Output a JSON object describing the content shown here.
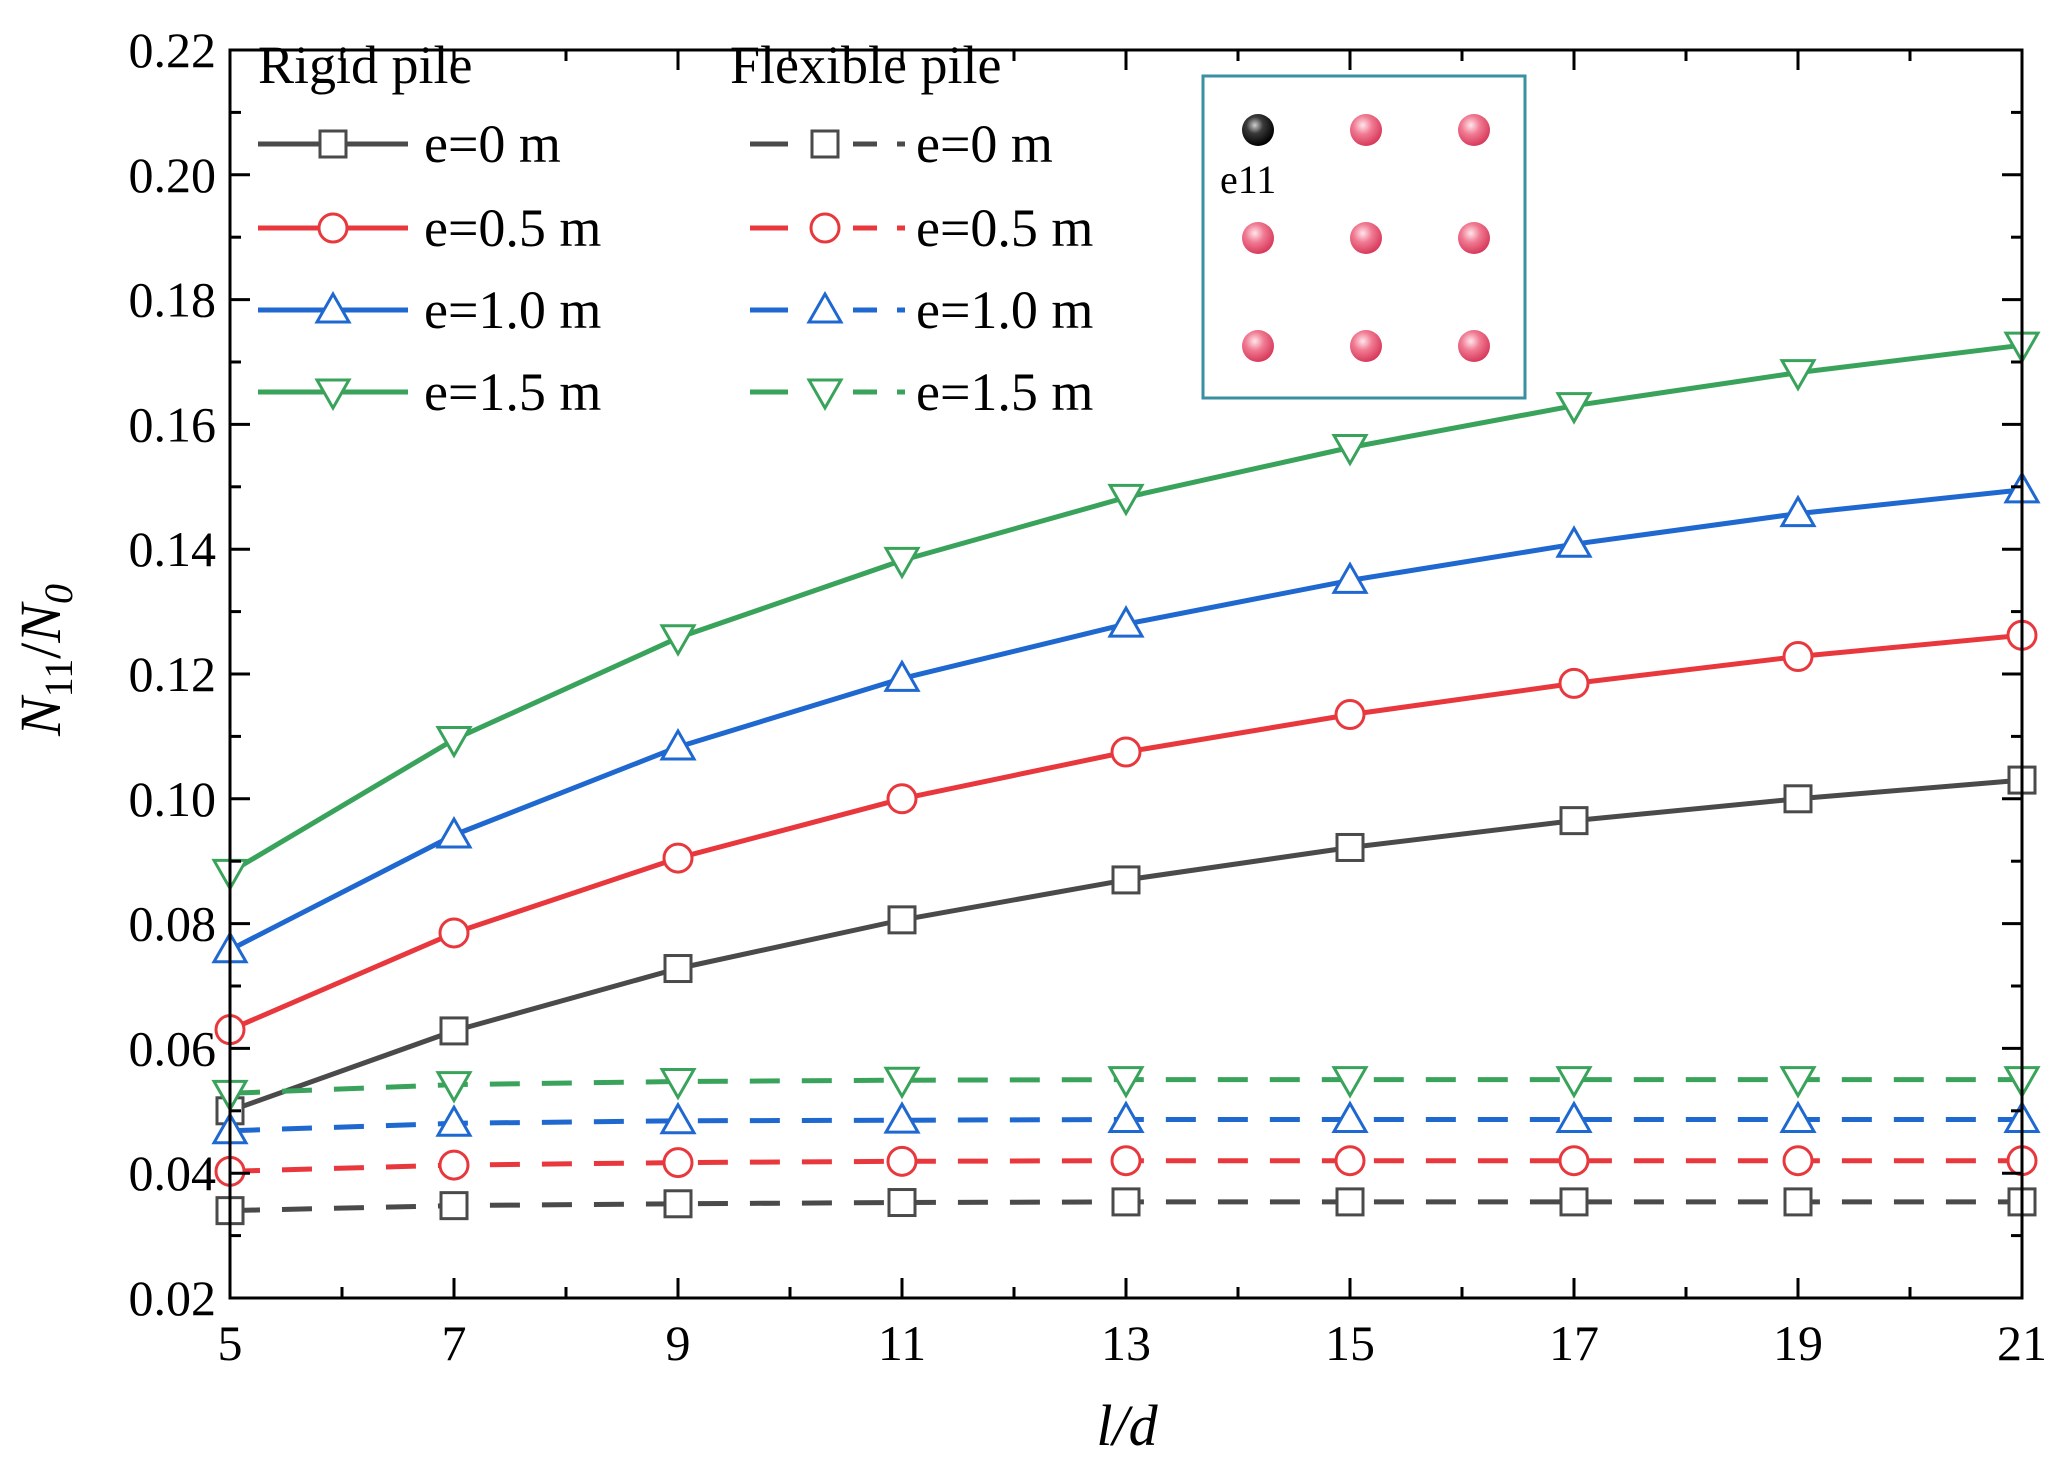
{
  "chart_data": {
    "type": "line",
    "xlabel": "l/d",
    "ylabel_main": "N",
    "ylabel_sub": "11",
    "ylabel_sep": "/",
    "ylabel_den": "N",
    "ylabel_den_sub": "0",
    "xlim": [
      5,
      21
    ],
    "ylim": [
      0.02,
      0.22
    ],
    "x_ticks": [
      5,
      7,
      9,
      11,
      13,
      15,
      17,
      19,
      21
    ],
    "x_tick_labels": [
      "5",
      "7",
      "9",
      "11",
      "13",
      "15",
      "17",
      "19",
      "21"
    ],
    "x_minor_step": 1,
    "y_ticks": [
      0.02,
      0.04,
      0.06,
      0.08,
      0.1,
      0.12,
      0.14,
      0.16,
      0.18,
      0.2,
      0.22
    ],
    "y_tick_labels": [
      "0.02",
      "0.04",
      "0.06",
      "0.08",
      "0.10",
      "0.12",
      "0.14",
      "0.16",
      "0.18",
      "0.20",
      "0.22"
    ],
    "y_minor_step": 0.01,
    "grid": false,
    "legend_position": "top-left",
    "legend_groups": [
      "Rigid pile",
      "Flexible pile"
    ],
    "x": [
      5,
      7,
      9,
      11,
      13,
      15,
      17,
      19,
      21
    ],
    "series": [
      {
        "name": "e=0 m",
        "group": "rigid",
        "dash": "solid",
        "marker": "square",
        "color": "#4a4a4a",
        "values": [
          0.05,
          0.0628,
          0.0728,
          0.0806,
          0.087,
          0.0922,
          0.0965,
          0.1,
          0.103
        ]
      },
      {
        "name": "e=0.5 m",
        "group": "rigid",
        "dash": "solid",
        "marker": "circle",
        "color": "#e8383d",
        "values": [
          0.063,
          0.0785,
          0.0905,
          0.1,
          0.1075,
          0.1135,
          0.1185,
          0.1228,
          0.1262
        ]
      },
      {
        "name": "e=1.0 m",
        "group": "rigid",
        "dash": "solid",
        "marker": "triangle-up",
        "color": "#1f68d0",
        "values": [
          0.0758,
          0.0942,
          0.1083,
          0.1193,
          0.128,
          0.135,
          0.1408,
          0.1457,
          0.1495
        ]
      },
      {
        "name": "e=1.5 m",
        "group": "rigid",
        "dash": "solid",
        "marker": "triangle-down",
        "color": "#3aa35b",
        "values": [
          0.0882,
          0.1095,
          0.1258,
          0.1382,
          0.1483,
          0.1563,
          0.163,
          0.1683,
          0.1727
        ]
      },
      {
        "name": "e=0 m",
        "group": "flexible",
        "dash": "dashed",
        "marker": "square",
        "color": "#4a4a4a",
        "values": [
          0.034,
          0.0348,
          0.0351,
          0.0353,
          0.0354,
          0.0354,
          0.0354,
          0.0354,
          0.0354
        ]
      },
      {
        "name": "e=0.5 m",
        "group": "flexible",
        "dash": "dashed",
        "marker": "circle",
        "color": "#e8383d",
        "values": [
          0.0403,
          0.0413,
          0.0417,
          0.0419,
          0.042,
          0.042,
          0.042,
          0.042,
          0.042
        ]
      },
      {
        "name": "e=1.0 m",
        "group": "flexible",
        "dash": "dashed",
        "marker": "triangle-up",
        "color": "#1f68d0",
        "values": [
          0.0468,
          0.048,
          0.0484,
          0.0485,
          0.0486,
          0.0486,
          0.0486,
          0.0486,
          0.0486
        ]
      },
      {
        "name": "e=1.5 m",
        "group": "flexible",
        "dash": "dashed",
        "marker": "triangle-down",
        "color": "#3aa35b",
        "values": [
          0.0528,
          0.0542,
          0.0547,
          0.0549,
          0.055,
          0.055,
          0.055,
          0.055,
          0.055
        ]
      }
    ],
    "inset": {
      "label": "e11",
      "border_color": "#3a8fa0",
      "highlight_color": "#000000",
      "pile_color": "#e8506e",
      "grid_rows": 3,
      "grid_cols": 3,
      "highlight_index": 0
    }
  }
}
